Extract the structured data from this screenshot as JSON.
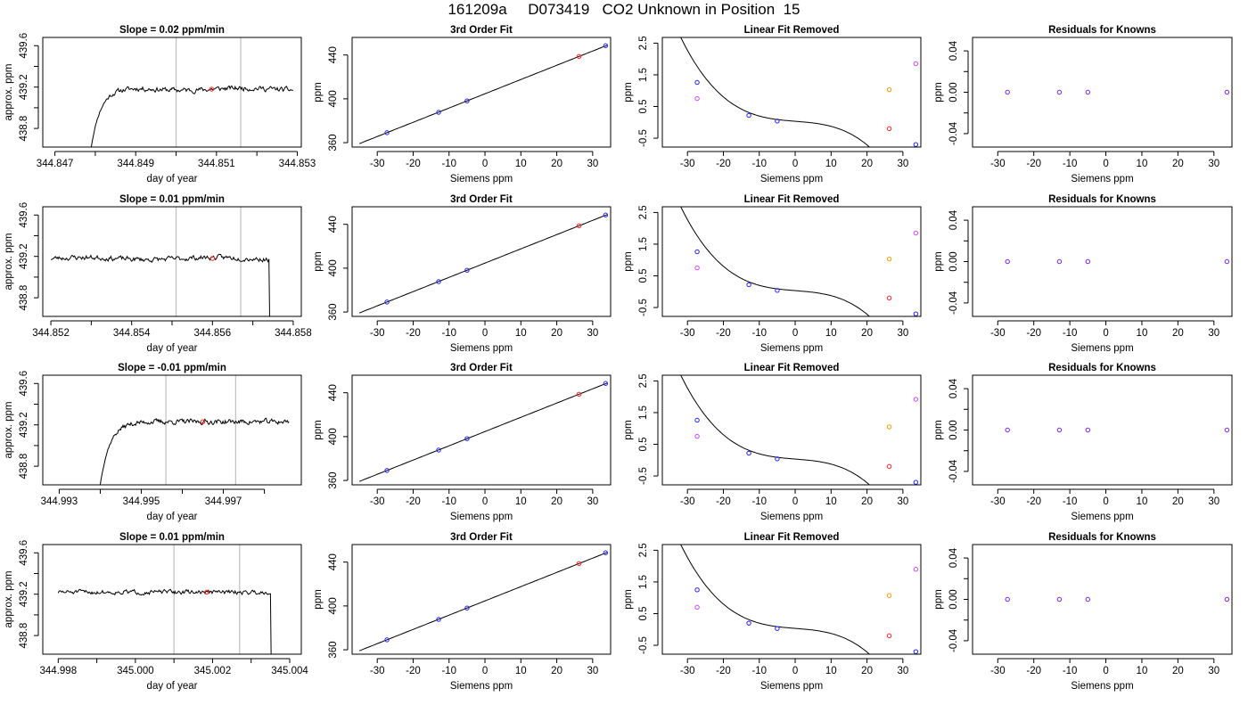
{
  "page": {
    "title": "161209a     D073419   CO2 Unknown in Position  15"
  },
  "colors": {
    "axis": "#000000",
    "trace": "#000000",
    "vline": "#bfbfbf",
    "blue": "#1f1fff",
    "red": "#ff2020",
    "orange": "#ff9900",
    "magenta": "#cc44ff",
    "purple": "#7a1fe0"
  },
  "chart_data": [
    {
      "type": "line",
      "title": "Slope =  0.02  ppm/min",
      "xlabel": "day of year",
      "ylabel": "approx. ppm",
      "xlim": [
        344.8467,
        344.8531
      ],
      "ylim": [
        438.62,
        439.68
      ],
      "xticks": [
        344.847,
        344.848,
        344.849,
        344.85,
        344.851,
        344.852,
        344.853
      ],
      "xtick_labels": [
        "344.847",
        "",
        "344.849",
        "",
        "344.851",
        "",
        "344.853"
      ],
      "yticks": [
        438.8,
        439.0,
        439.2,
        439.4,
        439.6
      ],
      "ytick_labels": [
        "438.8",
        "",
        "439.2",
        "",
        "439.6"
      ],
      "vlines": [
        344.85,
        344.8516
      ],
      "marker": [
        344.85088,
        439.18
      ],
      "trace": {
        "start": 344.8479,
        "rise_end": 344.8485,
        "end": 344.8529,
        "base": 438.62,
        "plateau": 439.18,
        "level_drift": 0.01,
        "noise": 0.018,
        "end_drop": false,
        "seed": 11
      }
    },
    {
      "type": "scatter",
      "title": "3rd Order Fit",
      "xlabel": "Siemens ppm",
      "ylabel": "ppm",
      "xlim": [
        -37,
        35
      ],
      "ylim": [
        356,
        456
      ],
      "xticks": [
        -30,
        -20,
        -10,
        0,
        10,
        20,
        30
      ],
      "yticks": [
        360,
        400,
        440
      ],
      "curve": {
        "type": "linear",
        "intercept": 404.6,
        "slope": 1.3,
        "from": -35,
        "to": 34
      },
      "points": [
        {
          "x": -27.3,
          "y": 369.1,
          "c": "blue"
        },
        {
          "x": -12.9,
          "y": 387.7,
          "c": "blue"
        },
        {
          "x": -5.0,
          "y": 398.1,
          "c": "blue"
        },
        {
          "x": 26.2,
          "y": 438.7,
          "c": "red"
        },
        {
          "x": 33.6,
          "y": 448.5,
          "c": "blue"
        }
      ]
    },
    {
      "type": "scatter",
      "title": "Linear Fit Removed",
      "xlabel": "Siemens ppm",
      "ylabel": "ppm",
      "xlim": [
        -37,
        35
      ],
      "ylim": [
        -0.78,
        2.68
      ],
      "xticks": [
        -30,
        -20,
        -10,
        0,
        10,
        20,
        30
      ],
      "yticks": [
        -0.5,
        0.5,
        1.5,
        2.5
      ],
      "ytick_labels": [
        "-0.5",
        "0.5",
        "1.5",
        "2.5"
      ],
      "curve": {
        "type": "cubic",
        "coeffs": [
          0.034,
          -0.0091,
          2.5e-05,
          -7.2e-05
        ],
        "from": -35,
        "to": 34
      },
      "points": [
        {
          "x": -27.3,
          "y": 1.26,
          "c": "blue"
        },
        {
          "x": -27.3,
          "y": 0.75,
          "c": "magenta"
        },
        {
          "x": -12.9,
          "y": 0.22,
          "c": "blue"
        },
        {
          "x": -5.0,
          "y": 0.04,
          "c": "blue"
        },
        {
          "x": 26.2,
          "y": -0.2,
          "c": "red"
        },
        {
          "x": 26.2,
          "y": 1.03,
          "c": "orange"
        },
        {
          "x": 33.6,
          "y": -0.7,
          "c": "blue"
        },
        {
          "x": 33.6,
          "y": 1.85,
          "c": "magenta"
        }
      ]
    },
    {
      "type": "scatter",
      "title": "Residuals for Knowns",
      "xlabel": "Siemens ppm",
      "ylabel": "ppm",
      "xlim": [
        -37,
        35
      ],
      "ylim": [
        -0.053,
        0.053
      ],
      "xticks": [
        -30,
        -20,
        -10,
        0,
        10,
        20,
        30
      ],
      "yticks": [
        -0.04,
        -0.02,
        0,
        0.02,
        0.04
      ],
      "ytick_labels": [
        "-0.04",
        "",
        "0.00",
        "",
        "0.04"
      ],
      "points": [
        {
          "x": -27.3,
          "y": 0,
          "c": "purple"
        },
        {
          "x": -12.9,
          "y": 0,
          "c": "purple"
        },
        {
          "x": -5.0,
          "y": 0,
          "c": "purple"
        },
        {
          "x": 33.6,
          "y": 0,
          "c": "purple"
        }
      ]
    },
    {
      "type": "line",
      "title": "Slope =  0.01  ppm/min",
      "xlabel": "day of year",
      "ylabel": "approx. ppm",
      "xlim": [
        344.8518,
        344.8582
      ],
      "ylim": [
        438.62,
        439.68
      ],
      "xticks": [
        344.852,
        344.853,
        344.854,
        344.855,
        344.856,
        344.857,
        344.858
      ],
      "xtick_labels": [
        "344.852",
        "",
        "344.854",
        "",
        "344.856",
        "",
        "344.858"
      ],
      "yticks": [
        438.8,
        439.0,
        439.2,
        439.4,
        439.6
      ],
      "ytick_labels": [
        "438.8",
        "",
        "439.2",
        "",
        "439.6"
      ],
      "vlines": [
        344.8551,
        344.8567
      ],
      "marker": [
        344.856,
        439.18
      ],
      "trace": {
        "start": 344.852,
        "rise_end": null,
        "end": 344.8574,
        "base": 438.62,
        "plateau": 439.18,
        "level_drift": 0.01,
        "noise": 0.018,
        "end_drop": true,
        "seed": 23
      }
    },
    {
      "type": "scatter",
      "title": "3rd Order Fit",
      "xlabel": "Siemens ppm",
      "ylabel": "ppm",
      "xlim": [
        -37,
        35
      ],
      "ylim": [
        356,
        456
      ],
      "xticks": [
        -30,
        -20,
        -10,
        0,
        10,
        20,
        30
      ],
      "yticks": [
        360,
        400,
        440
      ],
      "curve": {
        "type": "linear",
        "intercept": 404.6,
        "slope": 1.3,
        "from": -35,
        "to": 34
      },
      "points": [
        {
          "x": -27.3,
          "y": 369.1,
          "c": "blue"
        },
        {
          "x": -12.9,
          "y": 387.7,
          "c": "blue"
        },
        {
          "x": -5.0,
          "y": 398.1,
          "c": "blue"
        },
        {
          "x": 26.2,
          "y": 438.7,
          "c": "red"
        },
        {
          "x": 33.6,
          "y": 448.5,
          "c": "blue"
        }
      ]
    },
    {
      "type": "scatter",
      "title": "Linear Fit Removed",
      "xlabel": "Siemens ppm",
      "ylabel": "ppm",
      "xlim": [
        -37,
        35
      ],
      "ylim": [
        -0.78,
        2.68
      ],
      "xticks": [
        -30,
        -20,
        -10,
        0,
        10,
        20,
        30
      ],
      "yticks": [
        -0.5,
        0.5,
        1.5,
        2.5
      ],
      "ytick_labels": [
        "-0.5",
        "0.5",
        "1.5",
        "2.5"
      ],
      "curve": {
        "type": "cubic",
        "coeffs": [
          0.034,
          -0.0091,
          2.5e-05,
          -7.2e-05
        ],
        "from": -35,
        "to": 34
      },
      "points": [
        {
          "x": -27.3,
          "y": 1.26,
          "c": "blue"
        },
        {
          "x": -27.3,
          "y": 0.75,
          "c": "magenta"
        },
        {
          "x": -12.9,
          "y": 0.22,
          "c": "blue"
        },
        {
          "x": -5.0,
          "y": 0.04,
          "c": "blue"
        },
        {
          "x": 26.2,
          "y": -0.2,
          "c": "red"
        },
        {
          "x": 26.2,
          "y": 1.03,
          "c": "orange"
        },
        {
          "x": 33.6,
          "y": -0.7,
          "c": "blue"
        },
        {
          "x": 33.6,
          "y": 1.85,
          "c": "magenta"
        }
      ]
    },
    {
      "type": "scatter",
      "title": "Residuals for Knowns",
      "xlabel": "Siemens ppm",
      "ylabel": "ppm",
      "xlim": [
        -37,
        35
      ],
      "ylim": [
        -0.053,
        0.053
      ],
      "xticks": [
        -30,
        -20,
        -10,
        0,
        10,
        20,
        30
      ],
      "yticks": [
        -0.04,
        -0.02,
        0,
        0.02,
        0.04
      ],
      "ytick_labels": [
        "-0.04",
        "",
        "0.00",
        "",
        "0.04"
      ],
      "points": [
        {
          "x": -27.3,
          "y": 0,
          "c": "purple"
        },
        {
          "x": -12.9,
          "y": 0,
          "c": "purple"
        },
        {
          "x": -5.0,
          "y": 0,
          "c": "purple"
        },
        {
          "x": 33.6,
          "y": 0,
          "c": "purple"
        }
      ]
    },
    {
      "type": "line",
      "title": "Slope =  -0.01  ppm/min",
      "xlabel": "day of year",
      "ylabel": "approx. ppm",
      "xlim": [
        344.9926,
        344.9989
      ],
      "ylim": [
        438.62,
        439.68
      ],
      "xticks": [
        344.993,
        344.994,
        344.995,
        344.996,
        344.997,
        344.998
      ],
      "xtick_labels": [
        "344.993",
        "",
        "344.995",
        "",
        "344.997",
        ""
      ],
      "yticks": [
        438.8,
        439.0,
        439.2,
        439.4,
        439.6
      ],
      "ytick_labels": [
        "438.8",
        "",
        "439.2",
        "",
        "439.6"
      ],
      "vlines": [
        344.9956,
        344.9973
      ],
      "marker": [
        344.9965,
        439.23
      ],
      "trace": {
        "start": 344.994,
        "rise_end": 344.9946,
        "end": 344.9986,
        "base": 438.62,
        "plateau": 439.23,
        "level_drift": 0.0,
        "noise": 0.018,
        "end_drop": false,
        "seed": 37
      }
    },
    {
      "type": "scatter",
      "title": "3rd Order Fit",
      "xlabel": "Siemens ppm",
      "ylabel": "ppm",
      "xlim": [
        -37,
        35
      ],
      "ylim": [
        356,
        456
      ],
      "xticks": [
        -30,
        -20,
        -10,
        0,
        10,
        20,
        30
      ],
      "yticks": [
        360,
        400,
        440
      ],
      "curve": {
        "type": "linear",
        "intercept": 404.6,
        "slope": 1.3,
        "from": -35,
        "to": 34
      },
      "points": [
        {
          "x": -27.3,
          "y": 369.1,
          "c": "blue"
        },
        {
          "x": -12.9,
          "y": 387.7,
          "c": "blue"
        },
        {
          "x": -5.0,
          "y": 398.1,
          "c": "blue"
        },
        {
          "x": 26.2,
          "y": 438.7,
          "c": "red"
        },
        {
          "x": 33.6,
          "y": 448.5,
          "c": "blue"
        }
      ]
    },
    {
      "type": "scatter",
      "title": "Linear Fit Removed",
      "xlabel": "Siemens ppm",
      "ylabel": "ppm",
      "xlim": [
        -37,
        35
      ],
      "ylim": [
        -0.78,
        2.68
      ],
      "xticks": [
        -30,
        -20,
        -10,
        0,
        10,
        20,
        30
      ],
      "yticks": [
        -0.5,
        0.5,
        1.5,
        2.5
      ],
      "ytick_labels": [
        "-0.5",
        "0.5",
        "1.5",
        "2.5"
      ],
      "curve": {
        "type": "cubic",
        "coeffs": [
          0.034,
          -0.0091,
          2.5e-05,
          -7.2e-05
        ],
        "from": -35,
        "to": 34
      },
      "points": [
        {
          "x": -27.3,
          "y": 1.26,
          "c": "blue"
        },
        {
          "x": -27.3,
          "y": 0.75,
          "c": "magenta"
        },
        {
          "x": -12.9,
          "y": 0.22,
          "c": "blue"
        },
        {
          "x": -5.0,
          "y": 0.04,
          "c": "blue"
        },
        {
          "x": 26.2,
          "y": -0.2,
          "c": "red"
        },
        {
          "x": 26.2,
          "y": 1.05,
          "c": "orange"
        },
        {
          "x": 33.6,
          "y": -0.7,
          "c": "blue"
        },
        {
          "x": 33.6,
          "y": 1.92,
          "c": "magenta"
        }
      ]
    },
    {
      "type": "scatter",
      "title": "Residuals for Knowns",
      "xlabel": "Siemens ppm",
      "ylabel": "ppm",
      "xlim": [
        -37,
        35
      ],
      "ylim": [
        -0.053,
        0.053
      ],
      "xticks": [
        -30,
        -20,
        -10,
        0,
        10,
        20,
        30
      ],
      "yticks": [
        -0.04,
        -0.02,
        0,
        0.02,
        0.04
      ],
      "ytick_labels": [
        "-0.04",
        "",
        "0.00",
        "",
        "0.04"
      ],
      "points": [
        {
          "x": -27.3,
          "y": 0,
          "c": "purple"
        },
        {
          "x": -12.9,
          "y": 0,
          "c": "purple"
        },
        {
          "x": -5.0,
          "y": 0,
          "c": "purple"
        },
        {
          "x": 33.6,
          "y": 0,
          "c": "purple"
        }
      ]
    },
    {
      "type": "line",
      "title": "Slope =  0.01  ppm/min",
      "xlabel": "day of year",
      "ylabel": "approx. ppm",
      "xlim": [
        344.9976,
        345.0043
      ],
      "ylim": [
        438.62,
        439.68
      ],
      "xticks": [
        344.998,
        344.999,
        345.0,
        345.001,
        345.002,
        345.003,
        345.004
      ],
      "xtick_labels": [
        "344.998",
        "",
        "345.000",
        "",
        "345.002",
        "",
        "345.004"
      ],
      "yticks": [
        438.8,
        439.0,
        439.2,
        439.4,
        439.6
      ],
      "ytick_labels": [
        "438.8",
        "",
        "439.2",
        "",
        "439.6"
      ],
      "vlines": [
        345.001,
        345.0027
      ],
      "marker": [
        345.00185,
        439.22
      ],
      "trace": {
        "start": 344.998,
        "rise_end": null,
        "end": 345.0035,
        "base": 438.62,
        "plateau": 439.22,
        "level_drift": 0.0,
        "noise": 0.016,
        "end_drop": true,
        "seed": 51
      }
    },
    {
      "type": "scatter",
      "title": "3rd Order Fit",
      "xlabel": "Siemens ppm",
      "ylabel": "ppm",
      "xlim": [
        -37,
        35
      ],
      "ylim": [
        356,
        456
      ],
      "xticks": [
        -30,
        -20,
        -10,
        0,
        10,
        20,
        30
      ],
      "yticks": [
        360,
        400,
        440
      ],
      "curve": {
        "type": "linear",
        "intercept": 404.6,
        "slope": 1.3,
        "from": -35,
        "to": 34
      },
      "points": [
        {
          "x": -27.3,
          "y": 369.1,
          "c": "blue"
        },
        {
          "x": -12.9,
          "y": 387.7,
          "c": "blue"
        },
        {
          "x": -5.0,
          "y": 398.1,
          "c": "blue"
        },
        {
          "x": 26.2,
          "y": 438.7,
          "c": "red"
        },
        {
          "x": 33.6,
          "y": 448.5,
          "c": "blue"
        }
      ]
    },
    {
      "type": "scatter",
      "title": "Linear Fit Removed",
      "xlabel": "Siemens ppm",
      "ylabel": "ppm",
      "xlim": [
        -37,
        35
      ],
      "ylim": [
        -0.78,
        2.68
      ],
      "xticks": [
        -30,
        -20,
        -10,
        0,
        10,
        20,
        30
      ],
      "yticks": [
        -0.5,
        0.5,
        1.5,
        2.5
      ],
      "ytick_labels": [
        "-0.5",
        "0.5",
        "1.5",
        "2.5"
      ],
      "curve": {
        "type": "cubic",
        "coeffs": [
          0.034,
          -0.0091,
          2.5e-05,
          -7.2e-05
        ],
        "from": -35,
        "to": 34
      },
      "points": [
        {
          "x": -27.3,
          "y": 1.25,
          "c": "blue"
        },
        {
          "x": -27.3,
          "y": 0.7,
          "c": "magenta"
        },
        {
          "x": -12.9,
          "y": 0.2,
          "c": "blue"
        },
        {
          "x": -5.0,
          "y": 0.03,
          "c": "blue"
        },
        {
          "x": 26.2,
          "y": -0.2,
          "c": "red"
        },
        {
          "x": 26.2,
          "y": 1.07,
          "c": "orange"
        },
        {
          "x": 33.6,
          "y": -0.7,
          "c": "blue"
        },
        {
          "x": 33.6,
          "y": 1.9,
          "c": "magenta"
        }
      ]
    },
    {
      "type": "scatter",
      "title": "Residuals for Knowns",
      "xlabel": "Siemens ppm",
      "ylabel": "ppm",
      "xlim": [
        -37,
        35
      ],
      "ylim": [
        -0.053,
        0.053
      ],
      "xticks": [
        -30,
        -20,
        -10,
        0,
        10,
        20,
        30
      ],
      "yticks": [
        -0.04,
        -0.02,
        0,
        0.02,
        0.04
      ],
      "ytick_labels": [
        "-0.04",
        "",
        "0.00",
        "",
        "0.04"
      ],
      "points": [
        {
          "x": -27.3,
          "y": 0,
          "c": "purple"
        },
        {
          "x": -12.9,
          "y": 0,
          "c": "purple"
        },
        {
          "x": -5.0,
          "y": 0,
          "c": "purple"
        },
        {
          "x": 33.6,
          "y": 0,
          "c": "purple"
        }
      ]
    }
  ]
}
